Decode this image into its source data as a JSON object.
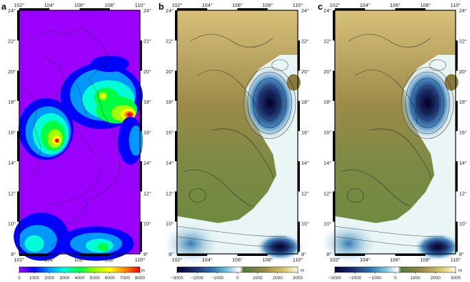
{
  "panels": [
    {
      "label": "a",
      "legend_unit": "m",
      "legend_ticks": [
        "0",
        "1000",
        "2000",
        "3000",
        "4000",
        "5000",
        "6000",
        "7000",
        "8000"
      ]
    },
    {
      "label": "b",
      "legend_unit": "m",
      "legend_ticks": [
        "−3000",
        "−2000",
        "−1000",
        "0",
        "1000",
        "2000",
        "3000"
      ]
    },
    {
      "label": "c",
      "legend_unit": "m",
      "legend_ticks": [
        "−3000",
        "−2000",
        "−1000",
        "0",
        "1000",
        "2000",
        "3000"
      ]
    }
  ],
  "axes": {
    "lon_labels": [
      "102°",
      "104°",
      "106°",
      "108°",
      "110°"
    ],
    "lat_labels": [
      "8°",
      "10°",
      "12°",
      "14°",
      "16°",
      "18°",
      "20°",
      "22°",
      "24°"
    ]
  },
  "colors": {
    "panel_a_scale": [
      "#9b00ff",
      "#0000ff",
      "#0098ff",
      "#00ffd8",
      "#00ff40",
      "#a0ff00",
      "#ffff00",
      "#ff8a00",
      "#ff0000"
    ],
    "panel_bc_scale": [
      "#000033",
      "#1b2f6e",
      "#2f79b0",
      "#7ec4de",
      "#eaf6f5",
      "#ffffff",
      "#4f7a3a",
      "#9b8a48",
      "#d8c56b",
      "#fffbe0"
    ]
  }
}
